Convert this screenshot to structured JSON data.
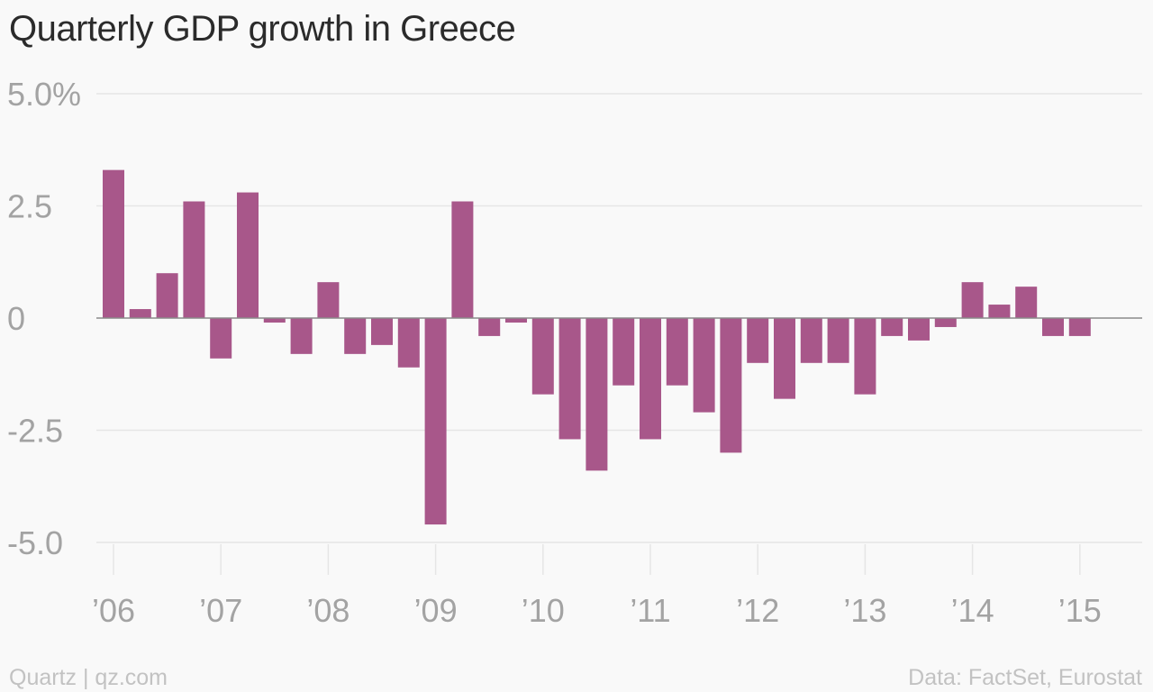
{
  "chart_data": {
    "type": "bar",
    "title": "Quarterly GDP growth in Greece",
    "xlabel": "",
    "ylabel": "",
    "ylim": [
      -5,
      5
    ],
    "yticks": [
      5,
      2.5,
      0,
      -2.5,
      -5
    ],
    "ytick_labels": [
      "5.0%",
      "2.5",
      "0",
      "-2.5",
      "-5.0"
    ],
    "xtick_labels": [
      "’06",
      "’07",
      "’08",
      "’09",
      "’10",
      "’11",
      "’12",
      "’13",
      "’14",
      "’15"
    ],
    "x_start_year": 2006,
    "bar_color": "#a8578a",
    "grid": true,
    "legend": "none",
    "values": [
      3.3,
      0.2,
      1.0,
      2.6,
      -0.9,
      2.8,
      -0.1,
      -0.8,
      0.8,
      -0.8,
      -0.6,
      -1.1,
      -4.6,
      2.6,
      -0.4,
      -0.1,
      -1.7,
      -2.7,
      -3.4,
      -1.5,
      -2.7,
      -1.5,
      -2.1,
      -3.0,
      -1.0,
      -1.8,
      -1.0,
      -1.0,
      -1.7,
      -0.4,
      -0.5,
      -0.2,
      0.8,
      0.3,
      0.7,
      -0.4,
      -0.4
    ]
  },
  "footer": {
    "source_left": "Quartz | qz.com",
    "source_right": "Data: FactSet, Eurostat"
  },
  "colors": {
    "background": "#f9f9f9",
    "bar": "#a8578a",
    "grid": "#e6e6e6",
    "axis_text": "#a3a3a3"
  }
}
